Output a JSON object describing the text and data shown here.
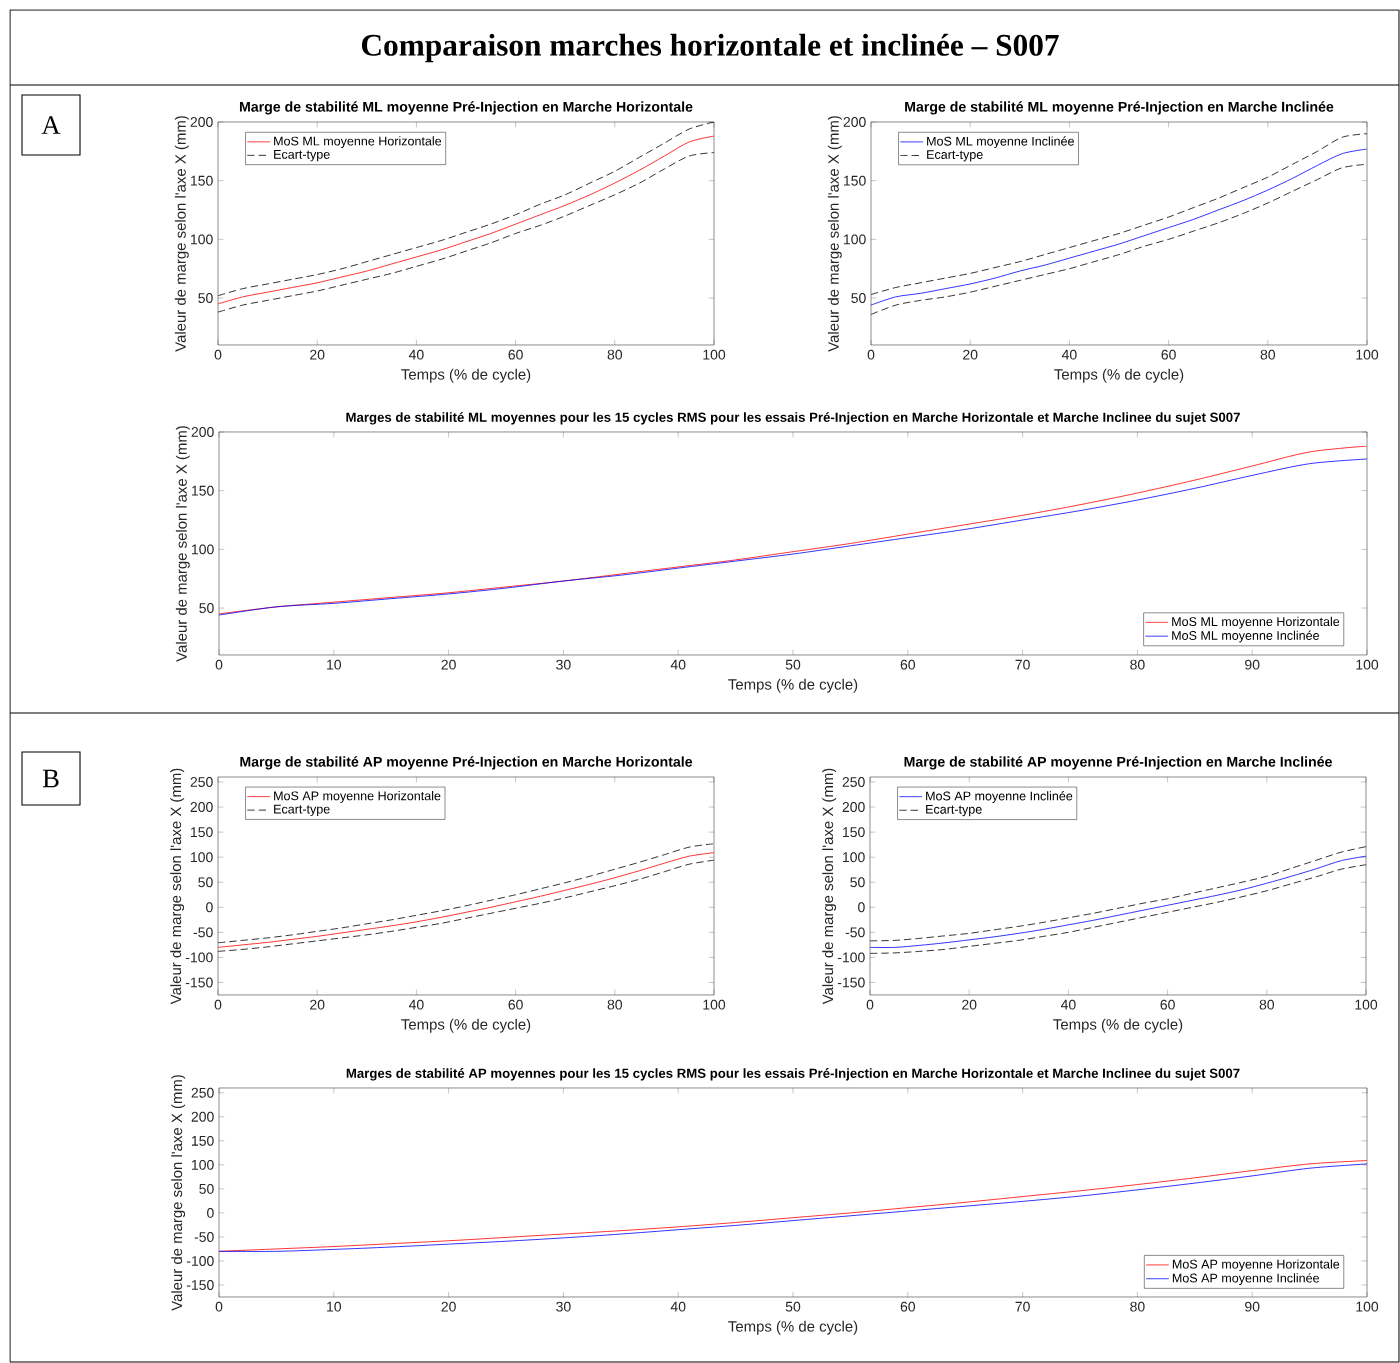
{
  "chart_data": [
    {
      "type": "other",
      "title": "Comparaison marches horizontale et inclinée – S007",
      "annotations": [
        "A",
        "B"
      ]
    },
    {
      "type": "line",
      "title": "Marge de stabilité ML moyenne Pré-Injection en Marche Horizontale",
      "xlabel": "Temps (% de cycle)",
      "ylabel": "Valeur de marge selon l'axe X (mm)",
      "xlim": [
        0,
        100
      ],
      "ylim": [
        10,
        200
      ],
      "xticks": [
        0,
        20,
        40,
        60,
        80,
        100
      ],
      "yticks": [
        50,
        100,
        150,
        200
      ],
      "legend": "top left",
      "x": [
        0,
        5,
        10,
        15,
        20,
        25,
        30,
        35,
        40,
        45,
        50,
        55,
        60,
        65,
        70,
        75,
        80,
        85,
        90,
        95,
        100
      ],
      "series": [
        {
          "name": "MoS ML moyenne Horizontale",
          "color": "#ff0000",
          "line_style": "solid",
          "values": [
            45,
            51,
            55,
            59,
            63,
            68,
            73,
            79,
            85,
            91,
            98,
            105,
            113,
            121,
            129,
            138,
            148,
            159,
            171,
            183,
            188
          ]
        },
        {
          "name": "Ecart-type",
          "color": "#000000",
          "line_style": "dashed",
          "values": [
            52,
            58,
            62,
            66,
            70,
            75,
            81,
            87,
            93,
            99,
            106,
            113,
            121,
            130,
            138,
            148,
            158,
            170,
            182,
            194,
            200
          ]
        },
        {
          "color": "#000000",
          "line_style": "dashed",
          "values": [
            38,
            44,
            48,
            52,
            56,
            61,
            66,
            71,
            77,
            83,
            90,
            97,
            105,
            112,
            120,
            129,
            138,
            148,
            160,
            171,
            174
          ]
        }
      ]
    },
    {
      "type": "line",
      "title": "Marge de stabilité ML moyenne Pré-Injection en Marche Inclinée",
      "xlabel": "Temps (% de cycle)",
      "ylabel": "Valeur de marge selon l'axe X (mm)",
      "xlim": [
        0,
        100
      ],
      "ylim": [
        10,
        200
      ],
      "xticks": [
        0,
        20,
        40,
        60,
        80,
        100
      ],
      "yticks": [
        50,
        100,
        150,
        200
      ],
      "legend": "top left",
      "x": [
        0,
        5,
        10,
        15,
        20,
        25,
        30,
        35,
        40,
        45,
        50,
        55,
        60,
        65,
        70,
        75,
        80,
        85,
        90,
        95,
        100
      ],
      "series": [
        {
          "name": "MoS ML moyenne Inclinée",
          "color": "#0000ff",
          "line_style": "solid",
          "values": [
            44,
            51,
            54,
            58,
            62,
            67,
            73,
            78,
            84,
            90,
            96,
            103,
            110,
            117,
            125,
            133,
            142,
            152,
            163,
            173,
            177
          ]
        },
        {
          "name": "Ecart-type",
          "color": "#000000",
          "line_style": "dashed",
          "values": [
            53,
            59,
            63,
            67,
            71,
            76,
            81,
            87,
            93,
            99,
            105,
            112,
            119,
            127,
            135,
            144,
            153,
            164,
            175,
            187,
            190
          ]
        },
        {
          "color": "#000000",
          "line_style": "dashed",
          "values": [
            36,
            44,
            48,
            51,
            55,
            60,
            65,
            70,
            75,
            81,
            87,
            94,
            100,
            107,
            114,
            122,
            131,
            141,
            151,
            161,
            164
          ]
        }
      ]
    },
    {
      "type": "line",
      "title": "Marges de stabilité ML moyennes pour les 15 cycles RMS pour les essais Pré-Injection en Marche Horizontale et Marche Inclinee du sujet S007",
      "xlabel": "Temps (% de cycle)",
      "ylabel": "Valeur de marge selon l'axe X (mm)",
      "xlim": [
        0,
        100
      ],
      "ylim": [
        10,
        200
      ],
      "xticks": [
        0,
        10,
        20,
        30,
        40,
        50,
        60,
        70,
        80,
        90,
        100
      ],
      "yticks": [
        50,
        100,
        150,
        200
      ],
      "legend": "bottom right",
      "x": [
        0,
        5,
        10,
        15,
        20,
        25,
        30,
        35,
        40,
        45,
        50,
        55,
        60,
        65,
        70,
        75,
        80,
        85,
        90,
        95,
        100
      ],
      "series": [
        {
          "name": "MoS ML moyenne Horizontale",
          "color": "#ff0000",
          "line_style": "solid",
          "values": [
            45,
            51,
            55,
            59,
            63,
            68,
            73,
            79,
            85,
            91,
            98,
            105,
            113,
            121,
            129,
            138,
            148,
            159,
            171,
            183,
            188
          ]
        },
        {
          "name": "MoS ML moyenne Inclinée",
          "color": "#0000ff",
          "line_style": "solid",
          "values": [
            44,
            51,
            54,
            58,
            62,
            67,
            73,
            78,
            84,
            90,
            96,
            103,
            110,
            117,
            125,
            133,
            142,
            152,
            163,
            173,
            177
          ]
        }
      ]
    },
    {
      "type": "line",
      "title": "Marge de stabilité AP moyenne Pré-Injection en Marche Horizontale",
      "xlabel": "Temps (% de cycle)",
      "ylabel": "Valeur de marge selon l'axe X (mm)",
      "xlim": [
        0,
        100
      ],
      "ylim": [
        -175,
        260
      ],
      "xticks": [
        0,
        20,
        40,
        60,
        80,
        100
      ],
      "yticks": [
        -150,
        -100,
        -50,
        0,
        50,
        100,
        150,
        200,
        250
      ],
      "legend": "top left",
      "x": [
        0,
        5,
        10,
        15,
        20,
        25,
        30,
        35,
        40,
        45,
        50,
        55,
        60,
        65,
        70,
        75,
        80,
        85,
        90,
        95,
        100
      ],
      "series": [
        {
          "name": "MoS AP moyenne Horizontale",
          "color": "#ff0000",
          "line_style": "solid",
          "values": [
            -80,
            -75,
            -70,
            -64,
            -58,
            -51,
            -44,
            -37,
            -29,
            -20,
            -10,
            0,
            11,
            22,
            34,
            46,
            59,
            73,
            88,
            102,
            109
          ]
        },
        {
          "name": "Ecart-type",
          "color": "#000000",
          "line_style": "dashed",
          "values": [
            -71,
            -66,
            -61,
            -55,
            -48,
            -41,
            -33,
            -25,
            -16,
            -7,
            3,
            14,
            25,
            37,
            49,
            62,
            76,
            90,
            105,
            120,
            127
          ]
        },
        {
          "color": "#000000",
          "line_style": "dashed",
          "values": [
            -88,
            -84,
            -79,
            -73,
            -67,
            -61,
            -55,
            -48,
            -40,
            -32,
            -22,
            -12,
            -2,
            8,
            19,
            31,
            43,
            56,
            71,
            86,
            94
          ]
        }
      ]
    },
    {
      "type": "line",
      "title": "Marge de stabilité AP moyenne Pré-Injection en Marche Inclinée",
      "xlabel": "Temps (% de cycle)",
      "ylabel": "Valeur de marge selon l'axe X (mm)",
      "xlim": [
        0,
        100
      ],
      "ylim": [
        -175,
        260
      ],
      "xticks": [
        0,
        20,
        40,
        60,
        80,
        100
      ],
      "yticks": [
        -150,
        -100,
        -50,
        0,
        50,
        100,
        150,
        200,
        250
      ],
      "legend": "top left",
      "x": [
        0,
        5,
        10,
        15,
        20,
        25,
        30,
        35,
        40,
        45,
        50,
        55,
        60,
        65,
        70,
        75,
        80,
        85,
        90,
        95,
        100
      ],
      "series": [
        {
          "name": "MoS AP moyenne Inclinée",
          "color": "#0000ff",
          "line_style": "solid",
          "values": [
            -80,
            -80,
            -76,
            -71,
            -65,
            -59,
            -52,
            -44,
            -35,
            -26,
            -16,
            -6,
            4,
            14,
            24,
            35,
            48,
            62,
            77,
            93,
            102
          ]
        },
        {
          "name": "Ecart-type",
          "color": "#000000",
          "line_style": "dashed",
          "values": [
            -67,
            -66,
            -62,
            -57,
            -52,
            -45,
            -38,
            -30,
            -21,
            -12,
            -2,
            8,
            17,
            28,
            39,
            50,
            62,
            78,
            94,
            110,
            121
          ]
        },
        {
          "color": "#000000",
          "line_style": "dashed",
          "values": [
            -92,
            -91,
            -88,
            -84,
            -78,
            -72,
            -66,
            -58,
            -50,
            -40,
            -30,
            -20,
            -10,
            0,
            10,
            21,
            33,
            47,
            61,
            76,
            85
          ]
        }
      ]
    },
    {
      "type": "line",
      "title": "Marges de stabilité AP moyennes pour les 15 cycles RMS pour les essais Pré-Injection en Marche Horizontale et Marche Inclinee du sujet S007",
      "xlabel": "Temps (% de cycle)",
      "ylabel": "Valeur de marge selon l'axe X (mm)",
      "xlim": [
        0,
        100
      ],
      "ylim": [
        -175,
        260
      ],
      "xticks": [
        0,
        10,
        20,
        30,
        40,
        50,
        60,
        70,
        80,
        90,
        100
      ],
      "yticks": [
        -150,
        -100,
        -50,
        0,
        50,
        100,
        150,
        200,
        250
      ],
      "legend": "bottom right",
      "x": [
        0,
        5,
        10,
        15,
        20,
        25,
        30,
        35,
        40,
        45,
        50,
        55,
        60,
        65,
        70,
        75,
        80,
        85,
        90,
        95,
        100
      ],
      "series": [
        {
          "name": "MoS AP moyenne Horizontale",
          "color": "#ff0000",
          "line_style": "solid",
          "values": [
            -80,
            -75,
            -70,
            -64,
            -58,
            -51,
            -44,
            -37,
            -29,
            -20,
            -10,
            0,
            11,
            22,
            34,
            46,
            59,
            73,
            88,
            102,
            109
          ]
        },
        {
          "name": "MoS AP moyenne Inclinée",
          "color": "#0000ff",
          "line_style": "solid",
          "values": [
            -80,
            -80,
            -76,
            -71,
            -65,
            -59,
            -52,
            -44,
            -35,
            -26,
            -16,
            -6,
            4,
            14,
            24,
            35,
            48,
            62,
            77,
            93,
            102
          ]
        }
      ]
    }
  ]
}
